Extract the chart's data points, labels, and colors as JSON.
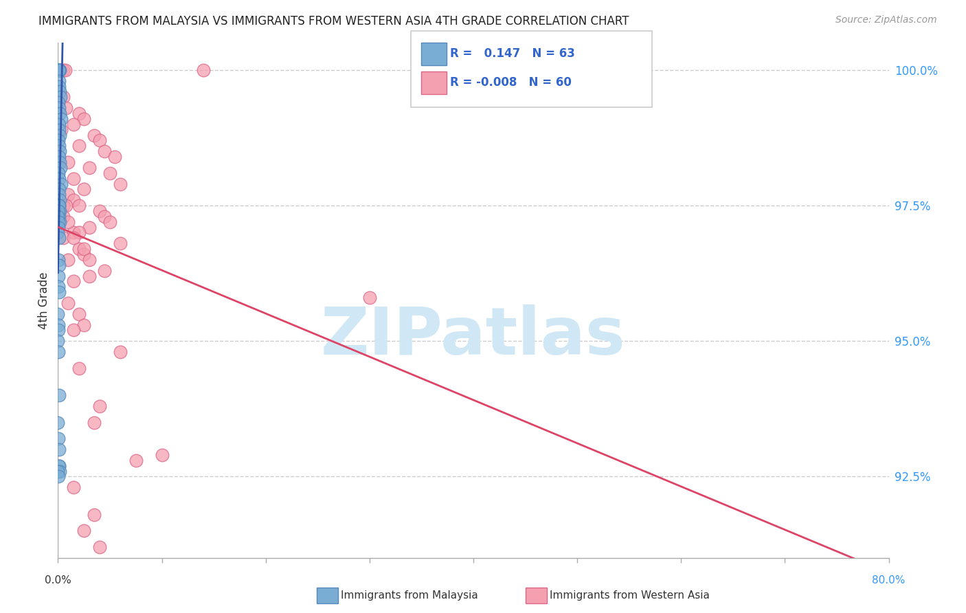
{
  "title": "IMMIGRANTS FROM MALAYSIA VS IMMIGRANTS FROM WESTERN ASIA 4TH GRADE CORRELATION CHART",
  "source": "Source: ZipAtlas.com",
  "ylabel": "4th Grade",
  "ylabel_right_values": [
    100.0,
    97.5,
    95.0,
    92.5
  ],
  "blue_color": "#7aadd4",
  "pink_color": "#f5a0b0",
  "blue_edge_color": "#5588bb",
  "pink_edge_color": "#dd6688",
  "blue_line_color": "#3355aa",
  "pink_line_color": "#dd4466",
  "watermark_text": "ZIPatlas",
  "watermark_color": "#d0e8f5",
  "blue_scatter": [
    [
      0.08,
      100.0
    ],
    [
      0.13,
      100.0
    ],
    [
      0.18,
      100.0
    ],
    [
      0.06,
      100.0
    ],
    [
      0.1,
      100.0
    ],
    [
      0.12,
      99.8
    ],
    [
      0.08,
      99.7
    ],
    [
      0.18,
      99.6
    ],
    [
      0.25,
      99.5
    ],
    [
      0.05,
      99.4
    ],
    [
      0.1,
      99.3
    ],
    [
      0.15,
      99.2
    ],
    [
      0.3,
      99.1
    ],
    [
      0.08,
      99.0
    ],
    [
      0.12,
      98.9
    ],
    [
      0.2,
      98.8
    ],
    [
      0.05,
      98.7
    ],
    [
      0.1,
      98.6
    ],
    [
      0.18,
      98.5
    ],
    [
      0.08,
      98.4
    ],
    [
      0.15,
      98.3
    ],
    [
      0.25,
      98.2
    ],
    [
      0.05,
      98.1
    ],
    [
      0.1,
      98.0
    ],
    [
      0.3,
      97.9
    ],
    [
      0.08,
      97.8
    ],
    [
      0.12,
      97.7
    ],
    [
      0.2,
      97.6
    ],
    [
      0.05,
      97.5
    ],
    [
      0.1,
      97.5
    ],
    [
      0.18,
      97.4
    ],
    [
      0.08,
      97.3
    ],
    [
      0.15,
      97.2
    ],
    [
      0.0,
      97.5
    ],
    [
      0.05,
      97.5
    ],
    [
      0.02,
      97.5
    ],
    [
      0.08,
      97.5
    ],
    [
      0.0,
      97.4
    ],
    [
      0.03,
      97.4
    ],
    [
      0.0,
      97.3
    ],
    [
      0.05,
      97.2
    ],
    [
      0.02,
      97.1
    ],
    [
      0.0,
      97.0
    ],
    [
      0.08,
      96.9
    ],
    [
      0.05,
      96.5
    ],
    [
      0.1,
      96.4
    ],
    [
      0.05,
      96.2
    ],
    [
      0.05,
      96.0
    ],
    [
      0.08,
      95.9
    ],
    [
      0.0,
      95.5
    ],
    [
      0.05,
      95.3
    ],
    [
      0.05,
      95.2
    ],
    [
      0.0,
      95.0
    ],
    [
      0.05,
      94.8
    ],
    [
      0.1,
      94.0
    ],
    [
      0.0,
      93.5
    ],
    [
      0.05,
      93.2
    ],
    [
      0.08,
      93.0
    ],
    [
      0.1,
      92.7
    ],
    [
      0.12,
      92.7
    ],
    [
      0.2,
      92.6
    ],
    [
      0.0,
      92.6
    ],
    [
      0.05,
      92.5
    ]
  ],
  "pink_scatter": [
    [
      0.2,
      100.0
    ],
    [
      0.5,
      100.0
    ],
    [
      0.7,
      100.0
    ],
    [
      14.0,
      100.0
    ],
    [
      0.5,
      99.5
    ],
    [
      0.8,
      99.3
    ],
    [
      2.0,
      99.2
    ],
    [
      2.5,
      99.1
    ],
    [
      1.5,
      99.0
    ],
    [
      0.3,
      98.9
    ],
    [
      3.5,
      98.8
    ],
    [
      4.0,
      98.7
    ],
    [
      2.0,
      98.6
    ],
    [
      4.5,
      98.5
    ],
    [
      5.5,
      98.4
    ],
    [
      1.0,
      98.3
    ],
    [
      3.0,
      98.2
    ],
    [
      5.0,
      98.1
    ],
    [
      1.5,
      98.0
    ],
    [
      6.0,
      97.9
    ],
    [
      2.5,
      97.8
    ],
    [
      1.0,
      97.7
    ],
    [
      1.5,
      97.6
    ],
    [
      2.0,
      97.5
    ],
    [
      0.5,
      97.5
    ],
    [
      0.8,
      97.5
    ],
    [
      4.0,
      97.4
    ],
    [
      4.5,
      97.3
    ],
    [
      5.0,
      97.2
    ],
    [
      3.0,
      97.1
    ],
    [
      1.5,
      97.0
    ],
    [
      0.5,
      96.9
    ],
    [
      6.0,
      96.8
    ],
    [
      2.0,
      96.7
    ],
    [
      2.5,
      96.6
    ],
    [
      1.0,
      96.5
    ],
    [
      4.5,
      96.3
    ],
    [
      3.0,
      96.2
    ],
    [
      1.5,
      96.1
    ],
    [
      30.0,
      95.8
    ],
    [
      1.0,
      95.7
    ],
    [
      2.0,
      95.5
    ],
    [
      2.5,
      95.3
    ],
    [
      1.5,
      95.2
    ],
    [
      6.0,
      94.8
    ],
    [
      2.0,
      94.5
    ],
    [
      4.0,
      93.8
    ],
    [
      3.5,
      93.5
    ],
    [
      7.5,
      92.8
    ],
    [
      10.0,
      92.9
    ],
    [
      1.5,
      92.3
    ],
    [
      3.5,
      91.8
    ],
    [
      2.5,
      91.5
    ],
    [
      4.0,
      91.2
    ],
    [
      0.5,
      97.3
    ],
    [
      1.0,
      97.2
    ],
    [
      2.0,
      97.0
    ],
    [
      1.5,
      96.9
    ],
    [
      2.5,
      96.7
    ],
    [
      3.0,
      96.5
    ]
  ],
  "xmin": 0.0,
  "xmax": 80.0,
  "ymin": 91.0,
  "ymax": 100.5
}
